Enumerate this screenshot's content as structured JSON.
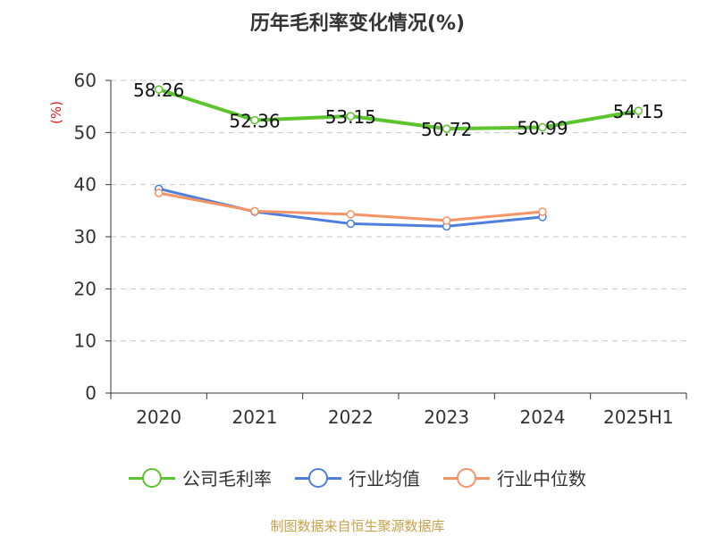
{
  "chart_data": {
    "type": "line",
    "title": "历年毛利率变化情况(%)",
    "ylabel": "(%)",
    "categories": [
      "2020",
      "2021",
      "2022",
      "2023",
      "2024",
      "2025H1"
    ],
    "ylim": [
      0,
      60
    ],
    "yticks": [
      0,
      10,
      20,
      30,
      40,
      50,
      60
    ],
    "grid": true,
    "legend_position": "bottom",
    "series": [
      {
        "name": "公司毛利率",
        "color": "#5cc42c",
        "values": [
          58.26,
          52.36,
          53.15,
          50.72,
          50.99,
          54.15
        ],
        "labels": [
          "58.26",
          "52.36",
          "53.15",
          "50.72",
          "50.99",
          "54.15"
        ]
      },
      {
        "name": "行业均值",
        "color": "#4e7fdc",
        "values": [
          39.2,
          34.8,
          32.5,
          32.0,
          33.8,
          null
        ]
      },
      {
        "name": "行业中位数",
        "color": "#f59467",
        "values": [
          38.4,
          34.9,
          34.3,
          33.1,
          34.8,
          null
        ]
      }
    ]
  },
  "source_note": "制图数据来自恒生聚源数据库"
}
